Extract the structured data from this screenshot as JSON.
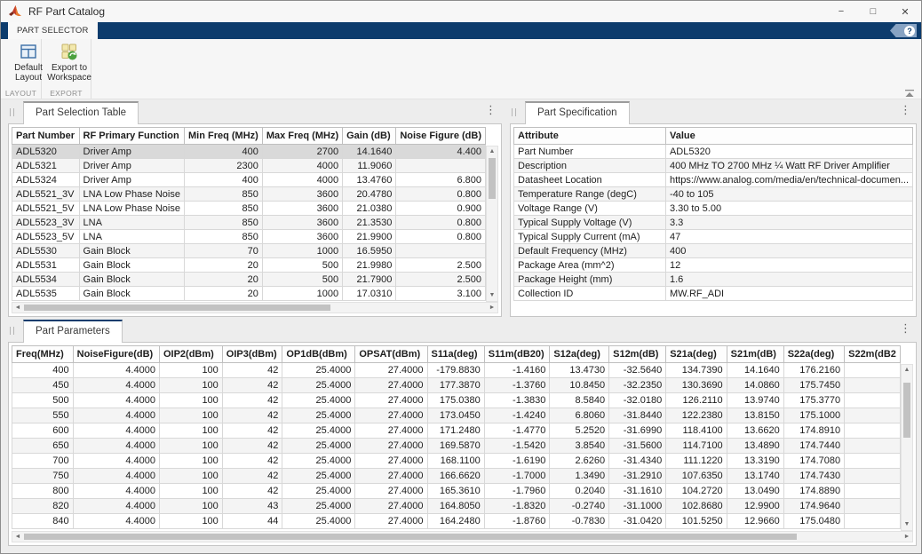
{
  "colors": {
    "accent_navy": "#0d3c6d",
    "selection_gray": "#d9d9d9",
    "row_stripe": "#f4f4f4",
    "help_pill_blue": "#87a3c3",
    "matlab_orange": "#d7542c"
  },
  "window": {
    "title": "RF Part Catalog"
  },
  "icons": {
    "minimize": "−",
    "maximize": "□",
    "close": "✕",
    "menu": "⋮",
    "up": "▲",
    "down": "▼",
    "left": "◄",
    "right": "►"
  },
  "ribbon": {
    "active_tab": "PART SELECTOR",
    "help_glyph": "?",
    "groups": [
      {
        "label": "LAYOUT",
        "buttons": [
          {
            "label": "Default Layout",
            "icon": "default-layout-icon"
          }
        ]
      },
      {
        "label": "EXPORT",
        "buttons": [
          {
            "label": "Export to Workspace",
            "icon": "export-to-workspace-icon"
          }
        ]
      }
    ]
  },
  "panels": {
    "part_selection_table": {
      "title": "Part Selection Table",
      "selected_part": "ADL5320",
      "selected_row_index": 0,
      "columns": [
        "Part Number",
        "RF Primary Function",
        "Min Freq (MHz)",
        "Max Freq (MHz)",
        "Gain (dB)",
        "Noise Figure (dB)"
      ],
      "rows": [
        [
          "ADL5320",
          "Driver Amp",
          "400",
          "2700",
          "14.1640",
          "4.400"
        ],
        [
          "ADL5321",
          "Driver Amp",
          "2300",
          "4000",
          "11.9060",
          ""
        ],
        [
          "ADL5324",
          "Driver Amp",
          "400",
          "4000",
          "13.4760",
          "6.800"
        ],
        [
          "ADL5521_3V",
          "LNA Low Phase Noise",
          "850",
          "3600",
          "20.4780",
          "0.800"
        ],
        [
          "ADL5521_5V",
          "LNA Low Phase Noise",
          "850",
          "3600",
          "21.0380",
          "0.900"
        ],
        [
          "ADL5523_3V",
          "LNA",
          "850",
          "3600",
          "21.3530",
          "0.800"
        ],
        [
          "ADL5523_5V",
          "LNA",
          "850",
          "3600",
          "21.9900",
          "0.800"
        ],
        [
          "ADL5530",
          "Gain Block",
          "70",
          "1000",
          "16.5950",
          ""
        ],
        [
          "ADL5531",
          "Gain Block",
          "20",
          "500",
          "21.9980",
          "2.500"
        ],
        [
          "ADL5534",
          "Gain Block",
          "20",
          "500",
          "21.7900",
          "2.500"
        ],
        [
          "ADL5535",
          "Gain Block",
          "20",
          "1000",
          "17.0310",
          "3.100"
        ]
      ]
    },
    "part_specification": {
      "title": "Part Specification",
      "columns": [
        "Attribute",
        "Value"
      ],
      "rows": [
        [
          "Part Number",
          "ADL5320"
        ],
        [
          "Description",
          "400 MHz TO 2700 MHz ¼ Watt RF Driver Amplifier"
        ],
        [
          "Datasheet Location",
          "https://www.analog.com/media/en/technical-documen..."
        ],
        [
          "Temperature Range (degC)",
          "-40 to 105"
        ],
        [
          "Voltage Range (V)",
          "3.30 to 5.00"
        ],
        [
          "Typical Supply Voltage (V)",
          "3.3"
        ],
        [
          "Typical Supply Current (mA)",
          "47"
        ],
        [
          "Default Frequency (MHz)",
          "400"
        ],
        [
          "Package Area (mm^2)",
          "12"
        ],
        [
          "Package Height (mm)",
          "1.6"
        ],
        [
          "Collection ID",
          "MW.RF_ADI"
        ]
      ]
    },
    "part_parameters": {
      "title": "Part Parameters",
      "columns": [
        "Freq(MHz)",
        "NoiseFigure(dB)",
        "OIP2(dBm)",
        "OIP3(dBm)",
        "OP1dB(dBm)",
        "OPSAT(dBm)",
        "S11a(deg)",
        "S11m(dB20)",
        "S12a(deg)",
        "S12m(dB)",
        "S21a(deg)",
        "S21m(dB)",
        "S22a(deg)",
        "S22m(dB2"
      ],
      "rows": [
        [
          "400",
          "4.4000",
          "100",
          "42",
          "25.4000",
          "27.4000",
          "-179.8830",
          "-1.4160",
          "13.4730",
          "-32.5640",
          "134.7390",
          "14.1640",
          "176.2160",
          ""
        ],
        [
          "450",
          "4.4000",
          "100",
          "42",
          "25.4000",
          "27.4000",
          "177.3870",
          "-1.3760",
          "10.8450",
          "-32.2350",
          "130.3690",
          "14.0860",
          "175.7450",
          ""
        ],
        [
          "500",
          "4.4000",
          "100",
          "42",
          "25.4000",
          "27.4000",
          "175.0380",
          "-1.3830",
          "8.5840",
          "-32.0180",
          "126.2110",
          "13.9740",
          "175.3770",
          ""
        ],
        [
          "550",
          "4.4000",
          "100",
          "42",
          "25.4000",
          "27.4000",
          "173.0450",
          "-1.4240",
          "6.8060",
          "-31.8440",
          "122.2380",
          "13.8150",
          "175.1000",
          ""
        ],
        [
          "600",
          "4.4000",
          "100",
          "42",
          "25.4000",
          "27.4000",
          "171.2480",
          "-1.4770",
          "5.2520",
          "-31.6990",
          "118.4100",
          "13.6620",
          "174.8910",
          ""
        ],
        [
          "650",
          "4.4000",
          "100",
          "42",
          "25.4000",
          "27.4000",
          "169.5870",
          "-1.5420",
          "3.8540",
          "-31.5600",
          "114.7100",
          "13.4890",
          "174.7440",
          ""
        ],
        [
          "700",
          "4.4000",
          "100",
          "42",
          "25.4000",
          "27.4000",
          "168.1100",
          "-1.6190",
          "2.6260",
          "-31.4340",
          "111.1220",
          "13.3190",
          "174.7080",
          ""
        ],
        [
          "750",
          "4.4000",
          "100",
          "42",
          "25.4000",
          "27.4000",
          "166.6620",
          "-1.7000",
          "1.3490",
          "-31.2910",
          "107.6350",
          "13.1740",
          "174.7430",
          ""
        ],
        [
          "800",
          "4.4000",
          "100",
          "42",
          "25.4000",
          "27.4000",
          "165.3610",
          "-1.7960",
          "0.2040",
          "-31.1610",
          "104.2720",
          "13.0490",
          "174.8890",
          ""
        ],
        [
          "820",
          "4.4000",
          "100",
          "43",
          "25.4000",
          "27.4000",
          "164.8050",
          "-1.8320",
          "-0.2740",
          "-31.1000",
          "102.8680",
          "12.9900",
          "174.9640",
          ""
        ],
        [
          "840",
          "4.4000",
          "100",
          "44",
          "25.4000",
          "27.4000",
          "164.2480",
          "-1.8760",
          "-0.7830",
          "-31.0420",
          "101.5250",
          "12.9660",
          "175.0480",
          ""
        ]
      ]
    }
  }
}
